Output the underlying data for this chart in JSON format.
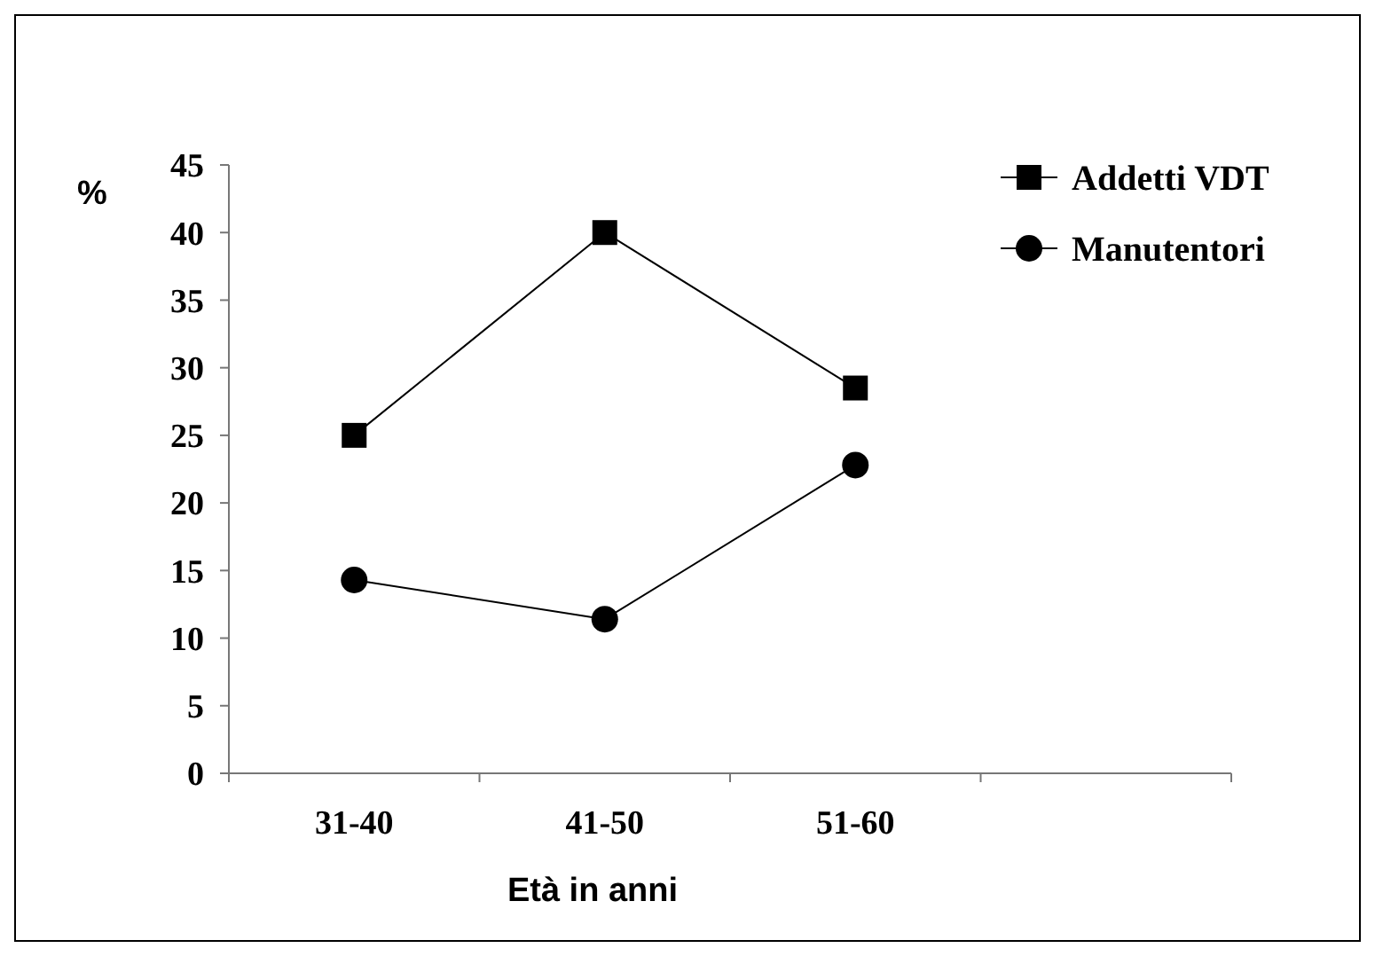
{
  "chart_data": {
    "type": "line",
    "ylabel": "%",
    "xlabel": "Età in anni",
    "categories": [
      "31-40",
      "41-50",
      "51-60",
      null
    ],
    "series": [
      {
        "name": "Addetti VDT",
        "color": "#000000",
        "marker": "square",
        "values": [
          25,
          40,
          28.5,
          null
        ]
      },
      {
        "name": "Manutentori",
        "color": "#000000",
        "marker": "circle",
        "values": [
          14.3,
          11.4,
          22.8,
          null
        ]
      }
    ],
    "ylim": [
      0,
      45
    ],
    "yticks": [
      0,
      5,
      10,
      15,
      20,
      25,
      30,
      35,
      40,
      45
    ],
    "legend": "top right",
    "grid": false
  }
}
